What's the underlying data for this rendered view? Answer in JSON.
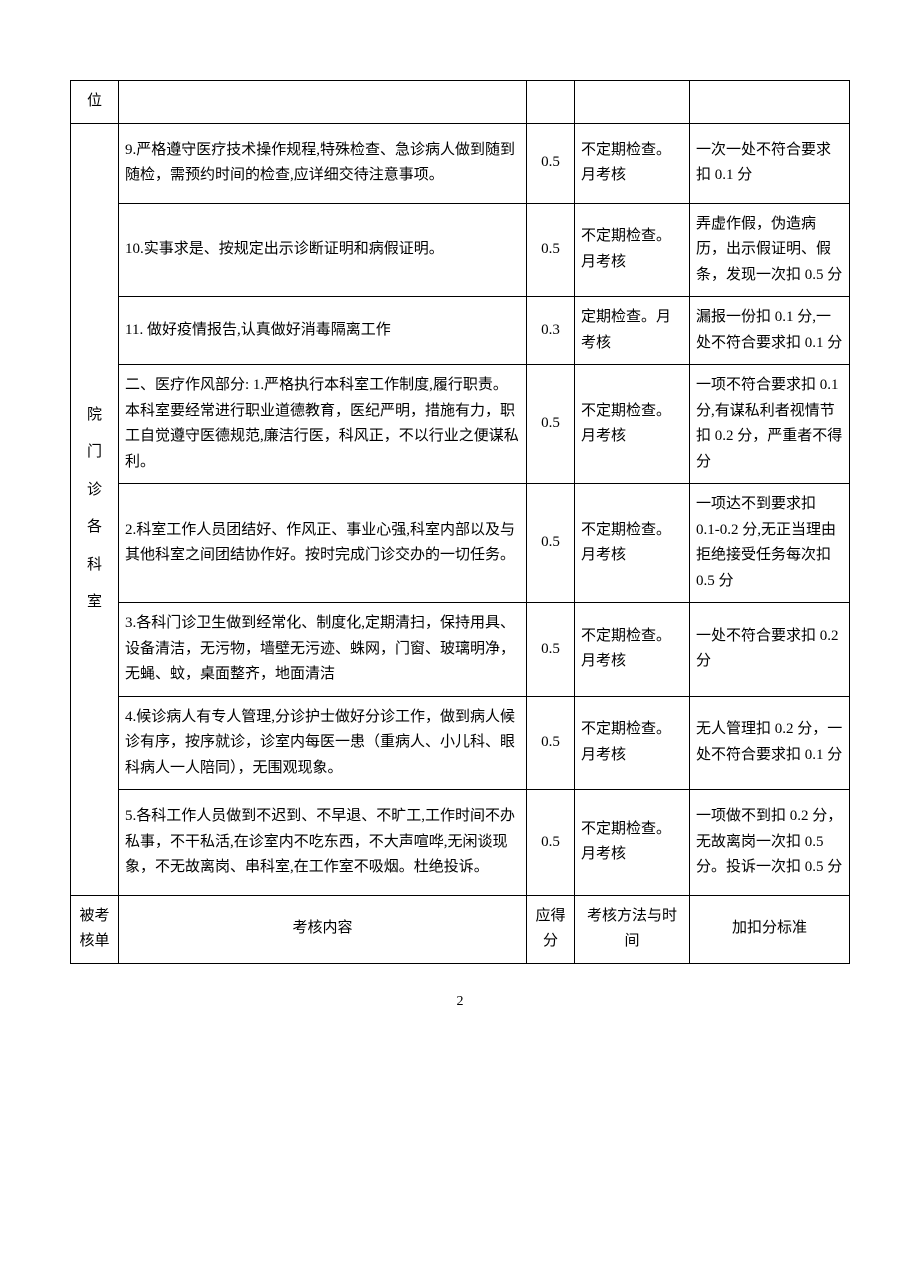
{
  "header_partial": {
    "col1": "位"
  },
  "side_label_chars": [
    "院",
    "门",
    "诊",
    "各",
    "科",
    "室"
  ],
  "rows": [
    {
      "content": "9.严格遵守医疗技术操作规程,特殊检查、急诊病人做到随到随检，需预约时间的检查,应详细交待注意事项。",
      "score": "0.5",
      "method": "不定期检查。月考核",
      "standard": "一次一处不符合要求扣 0.1 分"
    },
    {
      "content": "10.实事求是、按规定出示诊断证明和病假证明。",
      "score": "0.5",
      "method": "不定期检查。月考核",
      "standard": "弄虚作假，伪造病历，出示假证明、假条，发现一次扣 0.5 分"
    },
    {
      "content": "11. 做好疫情报告,认真做好消毒隔离工作",
      "score": "0.3",
      "method": "定期检查。月考核",
      "standard": "漏报一份扣 0.1 分,一处不符合要求扣 0.1 分"
    },
    {
      "content": "二、医疗作风部分:\n1.严格执行本科室工作制度,履行职责。本科室要经常进行职业道德教育，医纪严明，措施有力，职工自觉遵守医德规范,廉洁行医，科风正，不以行业之便谋私利。",
      "score": "0.5",
      "method": "不定期检查。月考核",
      "standard": "一项不符合要求扣 0.1 分,有谋私利者视情节扣 0.2 分，严重者不得分"
    },
    {
      "content": "2.科室工作人员团结好、作风正、事业心强,科室内部以及与其他科室之间团结协作好。按时完成门诊交办的一切任务。",
      "score": "0.5",
      "method": "不定期检查。月考核",
      "standard": "一项达不到要求扣 0.1-0.2 分,无正当理由拒绝接受任务每次扣 0.5 分"
    },
    {
      "content": "3.各科门诊卫生做到经常化、制度化,定期清扫，保持用具、设备清洁，无污物，墙壁无污迹、蛛网，门窗、玻璃明净，无蝇、蚊，桌面整齐，地面清洁",
      "score": "0.5",
      "method": "不定期检查。月考核",
      "standard": "一处不符合要求扣 0.2 分"
    },
    {
      "content": "4.候诊病人有专人管理,分诊护士做好分诊工作，做到病人候诊有序，按序就诊，诊室内每医一患（重病人、小儿科、眼科病人一人陪同），无围观现象。",
      "score": "0.5",
      "method": "不定期检查。月考核",
      "standard": "无人管理扣 0.2 分，一处不符合要求扣 0.1 分"
    },
    {
      "content": "5.各科工作人员做到不迟到、不早退、不旷工,工作时间不办私事，不干私活,在诊室内不吃东西，不大声喧哗,无闲谈现象，不无故离岗、串科室,在工作室不吸烟。杜绝投诉。",
      "score": "0.5",
      "method": "不定期检查。月考核",
      "standard": "一项做不到扣 0.2 分，无故离岗一次扣 0.5 分。投诉一次扣 0.5 分"
    }
  ],
  "footer_header": {
    "col1": "被考核单",
    "col2": "考核内容",
    "col3": "应得分",
    "col4": "考核方法与时间",
    "col5": "加扣分标准"
  },
  "page_number": "2"
}
